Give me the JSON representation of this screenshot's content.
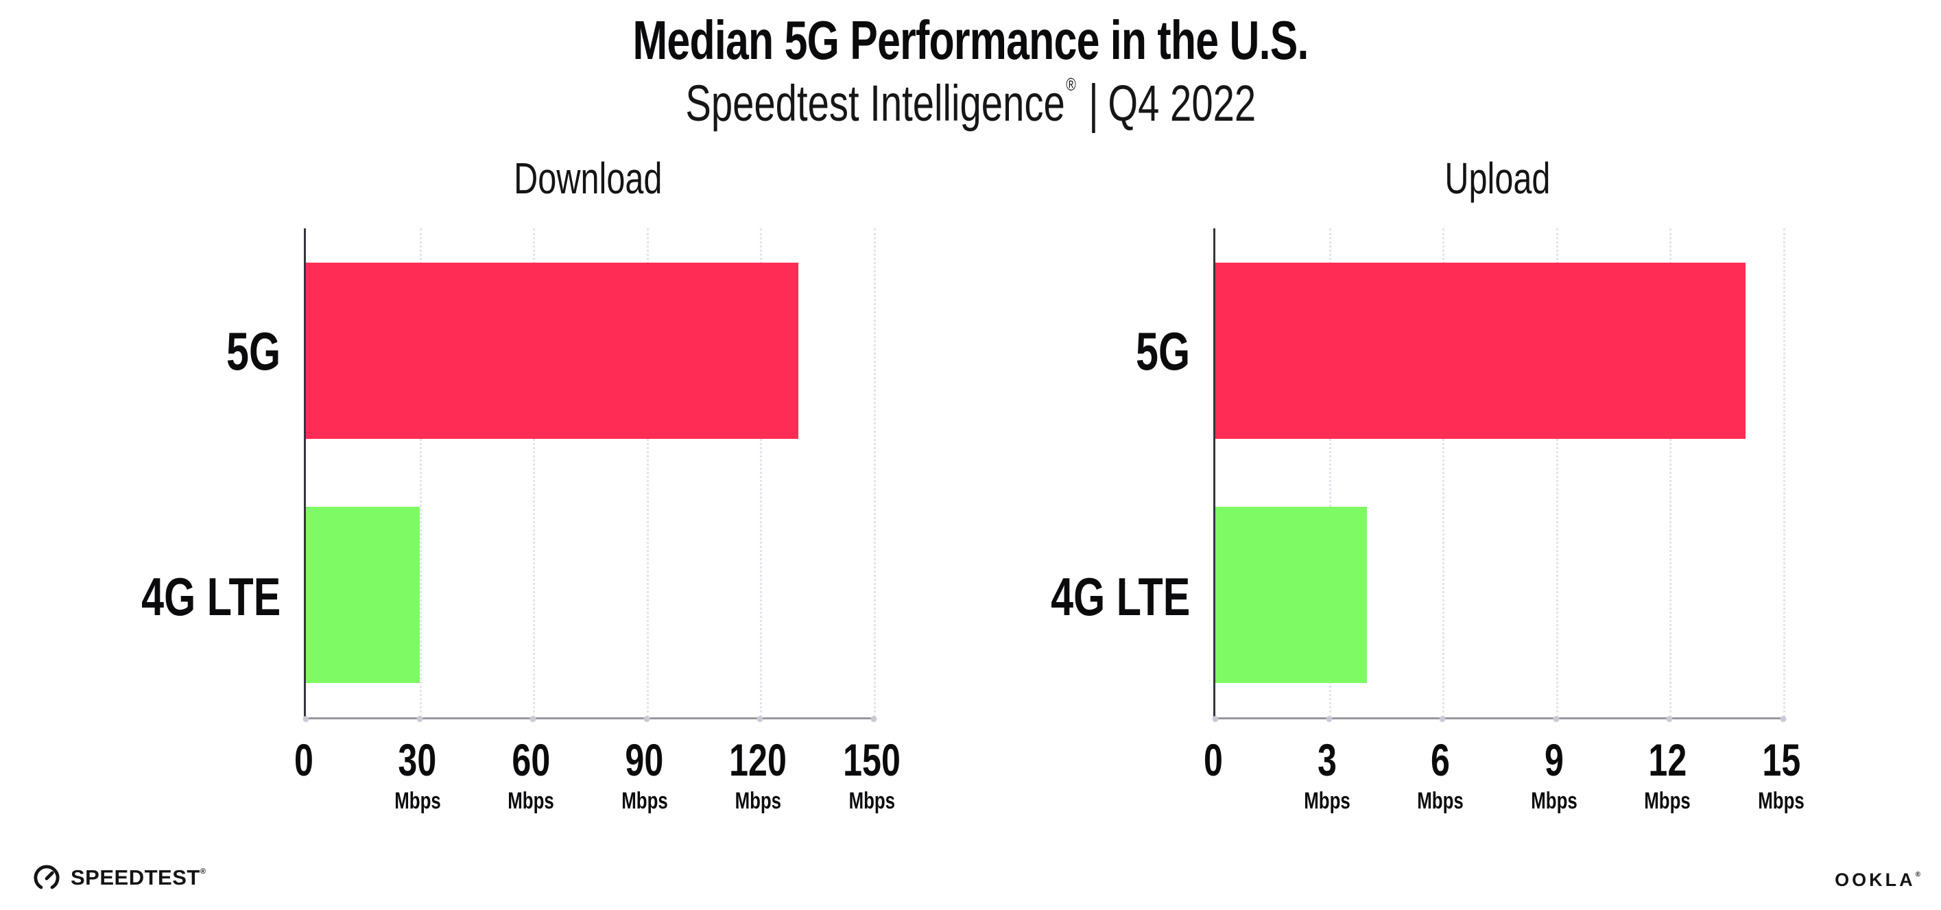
{
  "header": {
    "title": "Median 5G Performance in the U.S.",
    "subtitle_brand": "Speedtest Intelligence",
    "subtitle_reg": "®",
    "subtitle_sep": "|",
    "subtitle_period": "Q4 2022"
  },
  "footer": {
    "speedtest_logo_text": "SPEEDTEST",
    "speedtest_trademark": "®",
    "ookla_logo_text": "OOKLA",
    "ookla_trademark": "®"
  },
  "colors": {
    "bar_5g": "#FF2D55",
    "bar_4g_lte": "#7EFB64",
    "gridline": "#E2E2EC",
    "y_axis_line": "#35353F",
    "x_axis_line": "#97979F",
    "text": "#0B0B0E"
  },
  "chart_data": [
    {
      "type": "bar",
      "orientation": "horizontal",
      "title": "Download",
      "categories": [
        "5G",
        "4G LTE"
      ],
      "values": [
        130,
        30
      ],
      "unit": "Mbps",
      "xlim": [
        0,
        150
      ],
      "ticks": [
        0,
        30,
        60,
        90,
        120,
        150
      ],
      "bar_colors": [
        "#FF2D55",
        "#7EFB64"
      ],
      "grid": "dotted-vertical",
      "legend": "none"
    },
    {
      "type": "bar",
      "orientation": "horizontal",
      "title": "Upload",
      "categories": [
        "5G",
        "4G LTE"
      ],
      "values": [
        14,
        4
      ],
      "unit": "Mbps",
      "xlim": [
        0,
        15
      ],
      "ticks": [
        0,
        3,
        6,
        9,
        12,
        15
      ],
      "bar_colors": [
        "#FF2D55",
        "#7EFB64"
      ],
      "grid": "dotted-vertical",
      "legend": "none"
    }
  ]
}
